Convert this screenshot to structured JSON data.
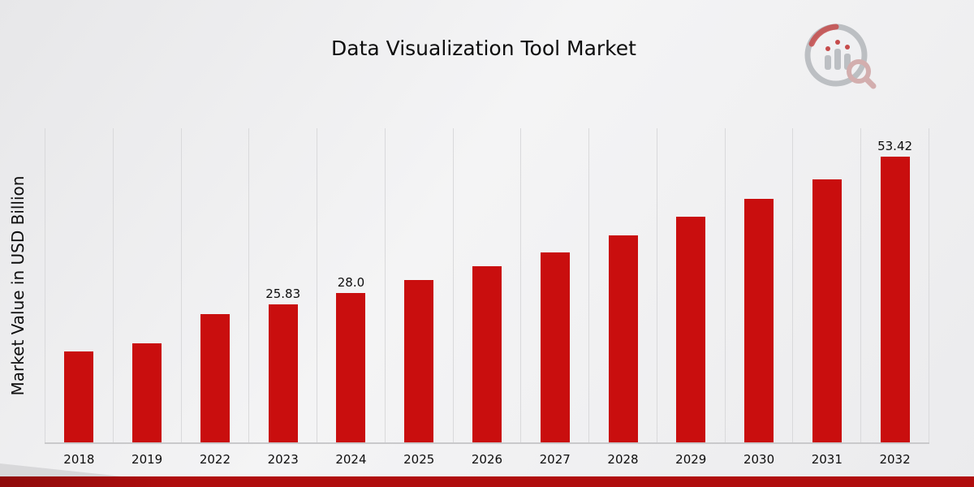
{
  "page": {
    "title": "Data Visualization Tool Market",
    "y_axis_label": "Market Value in USD Billion"
  },
  "chart_data": {
    "type": "bar",
    "title": "Data Visualization Tool Market",
    "xlabel": "",
    "ylabel": "Market Value in USD Billion",
    "categories": [
      "2018",
      "2019",
      "2022",
      "2023",
      "2024",
      "2025",
      "2026",
      "2027",
      "2028",
      "2029",
      "2030",
      "2031",
      "2032"
    ],
    "values": [
      16.95,
      18.6,
      23.95,
      25.83,
      28.0,
      30.35,
      32.95,
      35.55,
      38.75,
      42.25,
      45.6,
      49.3,
      53.42
    ],
    "data_labels": [
      null,
      null,
      null,
      "25.83",
      "28.0",
      null,
      null,
      null,
      null,
      null,
      null,
      null,
      "53.42"
    ],
    "bar_color": "#c90e0e",
    "ylim": [
      0,
      58.8
    ],
    "grid": "vertical-gridlines",
    "legend": "none"
  },
  "branding": {
    "logo_icon": "market-research-logo-icon",
    "footer_accent_color": "#b00d0d"
  }
}
